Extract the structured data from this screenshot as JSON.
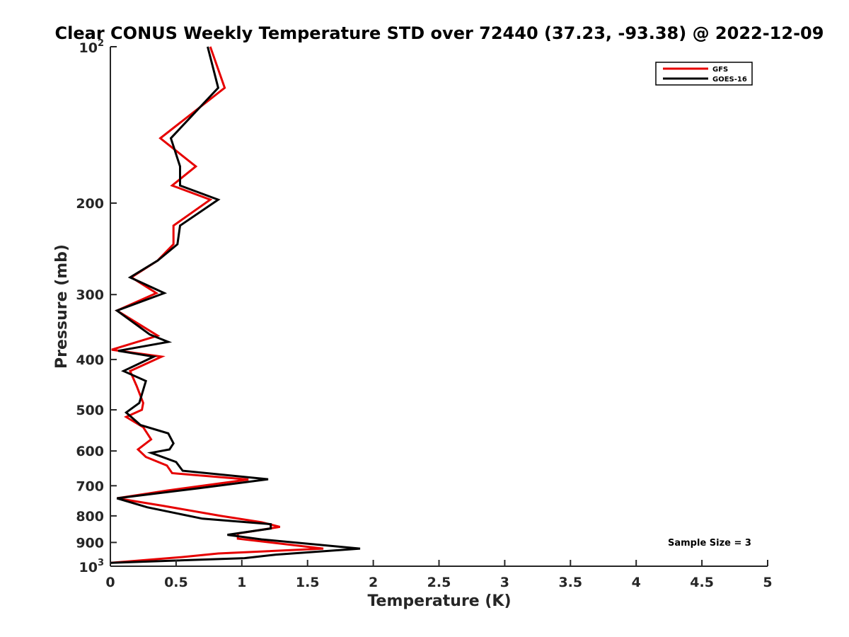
{
  "chart_data": {
    "type": "line",
    "title": "Clear CONUS Weekly Temperature STD over 72440 (37.23, -93.38) @ 2022-12-09",
    "xlabel": "Temperature (K)",
    "ylabel": "Pressure (mb)",
    "xlim": [
      0,
      5
    ],
    "ylim": [
      100,
      1000
    ],
    "y_scale": "log",
    "y_reversed": true,
    "grid": false,
    "legend_position": "top-right",
    "x_ticks": [
      {
        "value": 0,
        "label": "0"
      },
      {
        "value": 0.5,
        "label": "0.5"
      },
      {
        "value": 1,
        "label": "1"
      },
      {
        "value": 1.5,
        "label": "1.5"
      },
      {
        "value": 2,
        "label": "2"
      },
      {
        "value": 2.5,
        "label": "2.5"
      },
      {
        "value": 3,
        "label": "3"
      },
      {
        "value": 3.5,
        "label": "3.5"
      },
      {
        "value": 4,
        "label": "4"
      },
      {
        "value": 4.5,
        "label": "4.5"
      },
      {
        "value": 5,
        "label": "5"
      }
    ],
    "y_ticks": [
      {
        "value": 100,
        "base": "10",
        "exp": "2"
      },
      {
        "value": 200,
        "label": "200"
      },
      {
        "value": 300,
        "label": "300"
      },
      {
        "value": 400,
        "label": "400"
      },
      {
        "value": 500,
        "label": "500"
      },
      {
        "value": 600,
        "label": "600"
      },
      {
        "value": 700,
        "label": "700"
      },
      {
        "value": 800,
        "label": "800"
      },
      {
        "value": 900,
        "label": "900"
      },
      {
        "value": 1000,
        "base": "10",
        "exp": "3"
      }
    ],
    "series": [
      {
        "name": "GFS",
        "color": "#e60000",
        "points": [
          [
            0.76,
            100
          ],
          [
            0.87,
            120
          ],
          [
            0.38,
            150
          ],
          [
            0.65,
            170
          ],
          [
            0.47,
            185
          ],
          [
            0.76,
            197
          ],
          [
            0.48,
            221
          ],
          [
            0.48,
            240
          ],
          [
            0.36,
            258
          ],
          [
            0.16,
            278
          ],
          [
            0.35,
            298
          ],
          [
            0.05,
            322
          ],
          [
            0.36,
            360
          ],
          [
            0.01,
            383
          ],
          [
            0.39,
            395
          ],
          [
            0.15,
            421
          ],
          [
            0.2,
            450
          ],
          [
            0.25,
            485
          ],
          [
            0.24,
            500
          ],
          [
            0.12,
            516
          ],
          [
            0.25,
            540
          ],
          [
            0.31,
            570
          ],
          [
            0.21,
            596
          ],
          [
            0.27,
            616
          ],
          [
            0.43,
            640
          ],
          [
            0.47,
            662
          ],
          [
            1.05,
            681
          ],
          [
            0.43,
            715
          ],
          [
            0.05,
            740
          ],
          [
            0.4,
            765
          ],
          [
            0.84,
            800
          ],
          [
            1.15,
            823
          ],
          [
            1.29,
            840
          ],
          [
            0.97,
            865
          ],
          [
            0.97,
            885
          ],
          [
            1.62,
            925
          ],
          [
            0.82,
            945
          ],
          [
            0.55,
            960
          ],
          [
            0.0,
            985
          ]
        ]
      },
      {
        "name": "GOES-16",
        "color": "#000000",
        "points": [
          [
            0.74,
            100
          ],
          [
            0.82,
            120
          ],
          [
            0.46,
            150
          ],
          [
            0.53,
            170
          ],
          [
            0.53,
            185
          ],
          [
            0.82,
            197
          ],
          [
            0.53,
            221
          ],
          [
            0.51,
            240
          ],
          [
            0.36,
            258
          ],
          [
            0.15,
            278
          ],
          [
            0.41,
            298
          ],
          [
            0.05,
            322
          ],
          [
            0.3,
            358
          ],
          [
            0.44,
            370
          ],
          [
            0.06,
            385
          ],
          [
            0.33,
            395
          ],
          [
            0.1,
            421
          ],
          [
            0.27,
            440
          ],
          [
            0.22,
            485
          ],
          [
            0.12,
            506
          ],
          [
            0.23,
            535
          ],
          [
            0.44,
            555
          ],
          [
            0.48,
            580
          ],
          [
            0.45,
            596
          ],
          [
            0.31,
            605
          ],
          [
            0.5,
            630
          ],
          [
            0.55,
            655
          ],
          [
            1.2,
            680
          ],
          [
            0.67,
            708
          ],
          [
            0.05,
            740
          ],
          [
            0.28,
            770
          ],
          [
            0.7,
            810
          ],
          [
            1.22,
            830
          ],
          [
            1.22,
            846
          ],
          [
            0.89,
            870
          ],
          [
            1.15,
            888
          ],
          [
            1.9,
            925
          ],
          [
            1.26,
            950
          ],
          [
            1.02,
            965
          ],
          [
            0.0,
            985
          ]
        ]
      }
    ],
    "annotation": "Sample Size = 3"
  }
}
